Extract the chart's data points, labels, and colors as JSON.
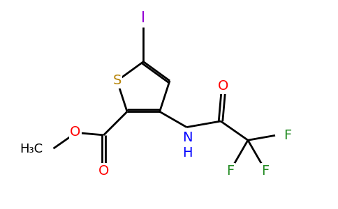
{
  "background_color": "#ffffff",
  "atom_colors": {
    "S": "#b8860b",
    "O": "#ff0000",
    "N": "#0000ff",
    "F": "#228b22",
    "I": "#9400d3",
    "C": "#000000",
    "H": "#000000"
  },
  "bond_width": 2.0,
  "font_size": 14,
  "figsize": [
    4.84,
    3.0
  ],
  "dpi": 100,
  "xlim": [
    0,
    4.84
  ],
  "ylim": [
    0,
    3.0
  ]
}
